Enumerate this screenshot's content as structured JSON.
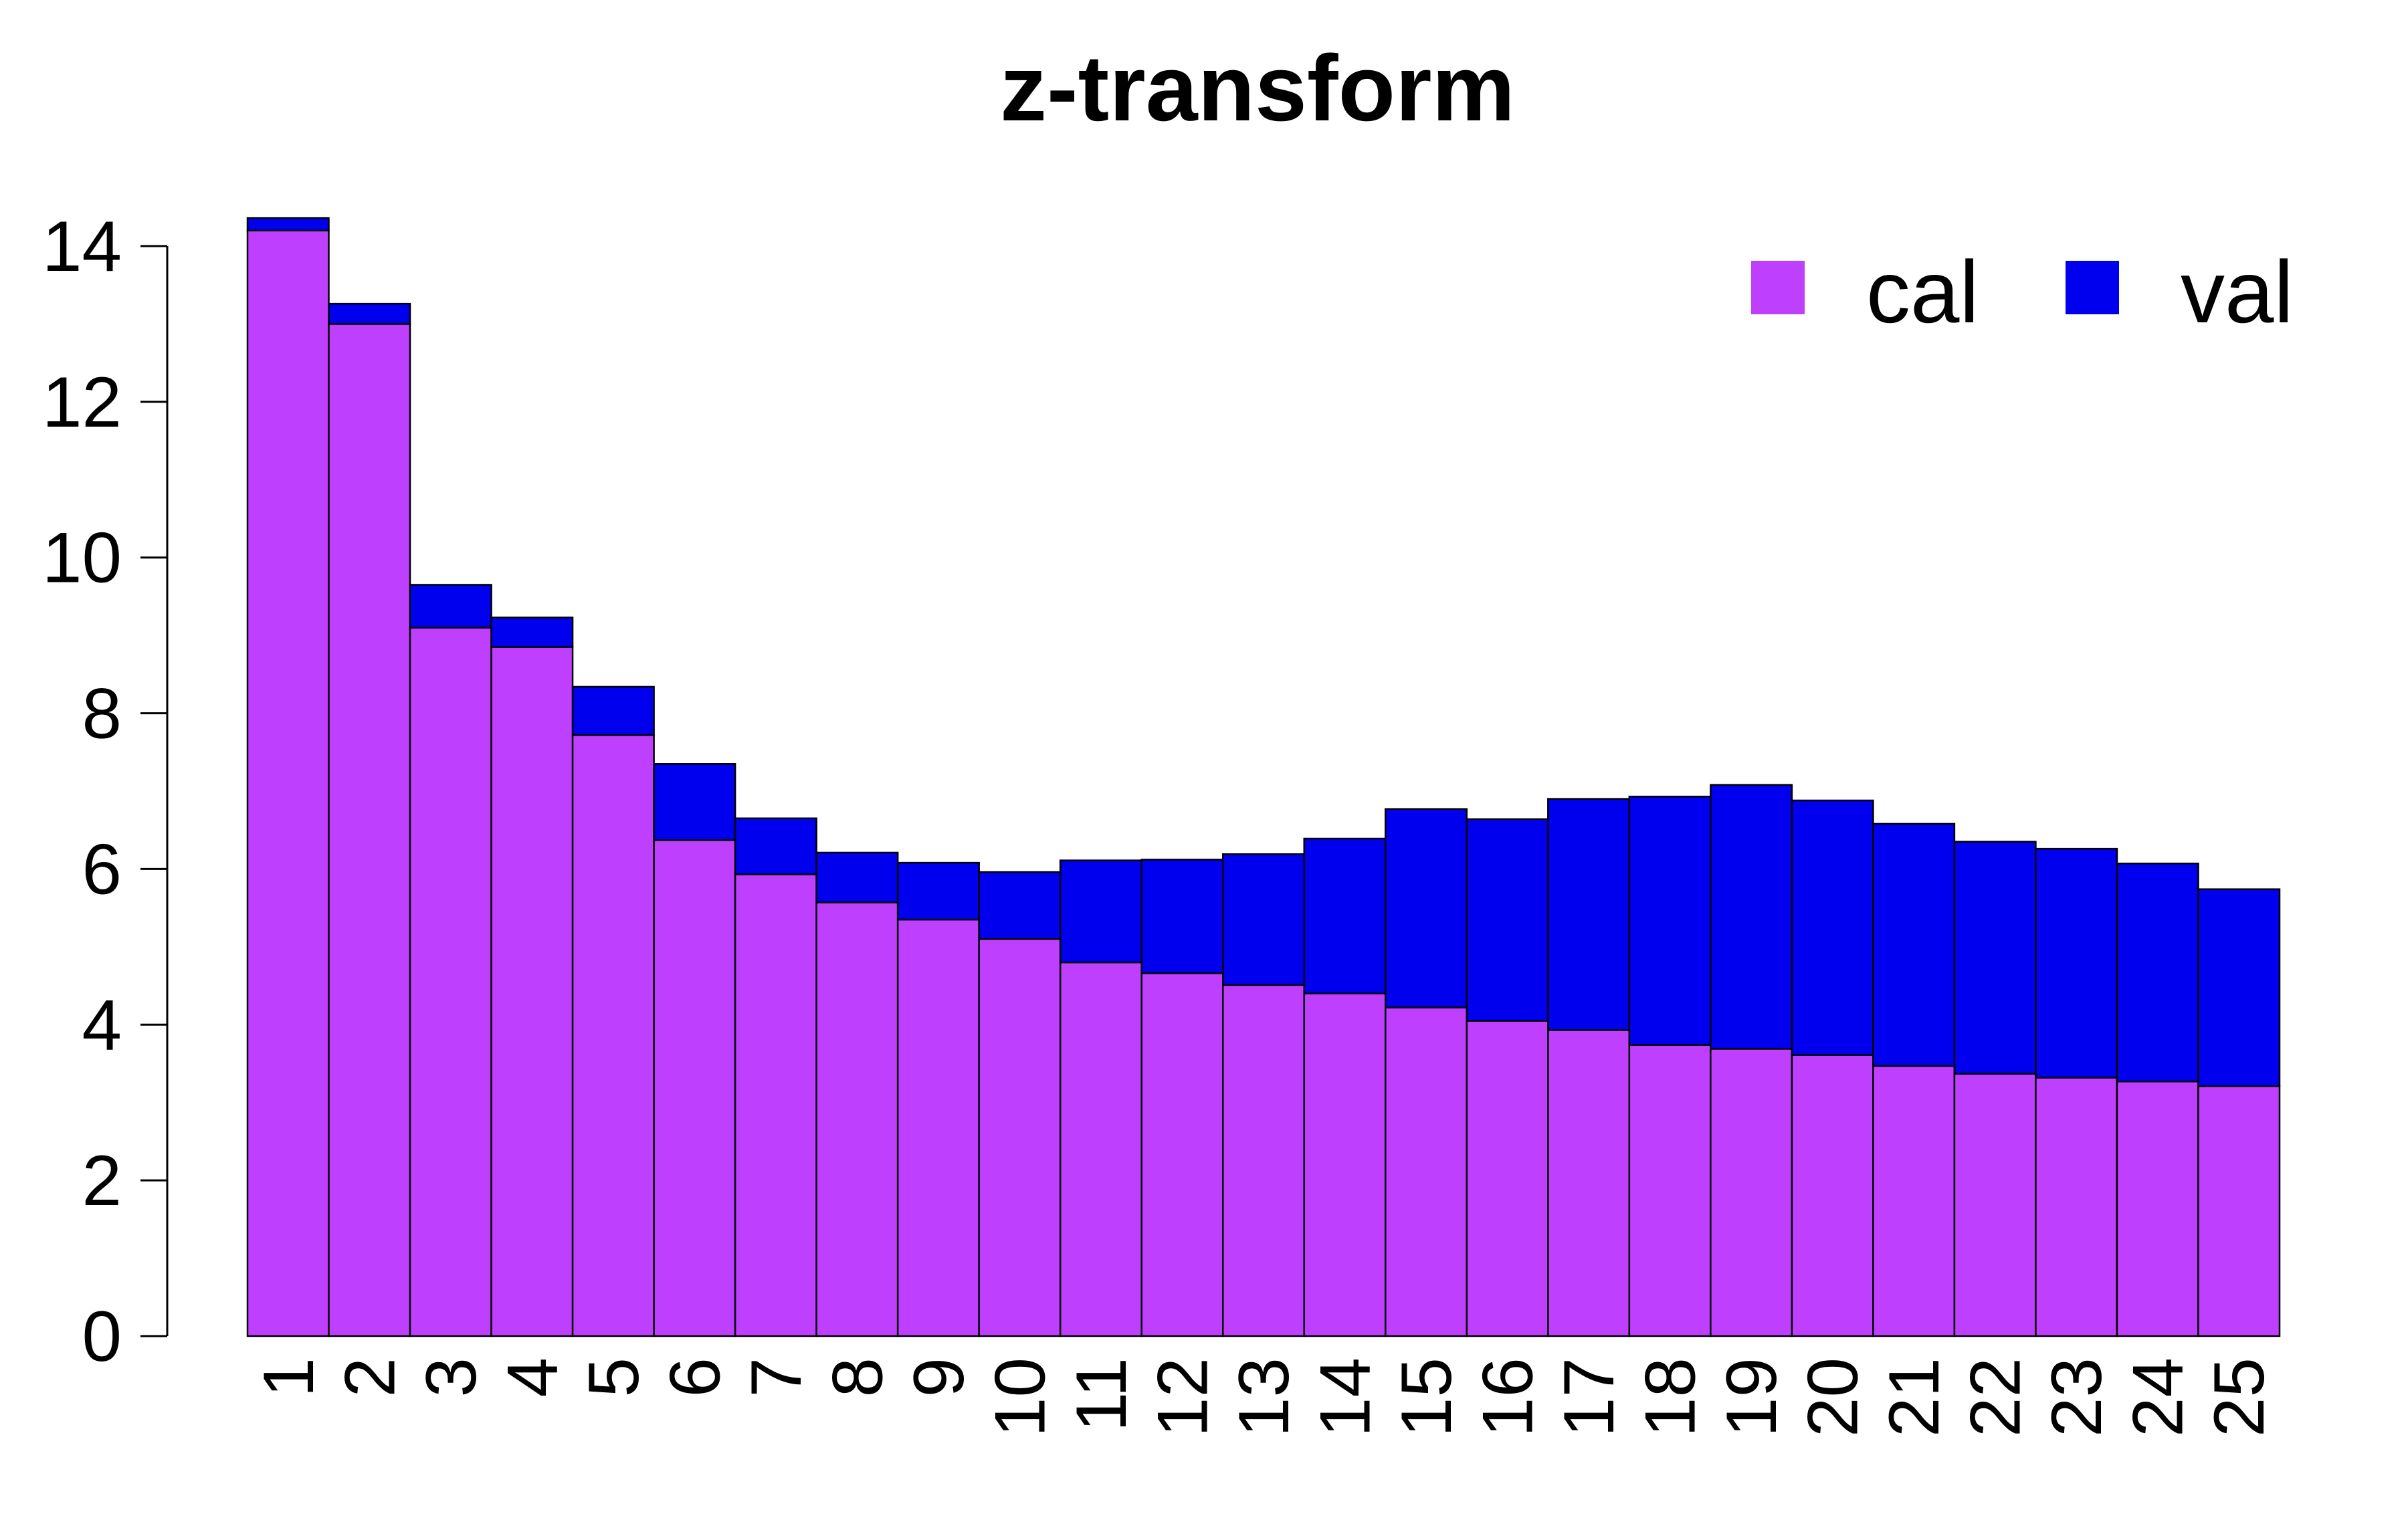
{
  "chart_data": {
    "type": "bar",
    "stacked": true,
    "title": "z-transform",
    "xlabel": "",
    "ylabel": "",
    "ylim": [
      0,
      14
    ],
    "yticks": [
      "0",
      "2",
      "4",
      "6",
      "8",
      "10",
      "12",
      "14"
    ],
    "categories": [
      "1",
      "2",
      "3",
      "4",
      "5",
      "6",
      "7",
      "8",
      "9",
      "10",
      "11",
      "12",
      "13",
      "14",
      "15",
      "16",
      "17",
      "18",
      "19",
      "20",
      "21",
      "22",
      "23",
      "24",
      "25"
    ],
    "series": [
      {
        "name": "cal",
        "color": "#bf3fff",
        "values": [
          14.2,
          13.0,
          9.1,
          8.85,
          7.72,
          6.37,
          5.93,
          5.57,
          5.35,
          5.1,
          4.8,
          4.66,
          4.51,
          4.4,
          4.22,
          4.05,
          3.93,
          3.74,
          3.69,
          3.61,
          3.47,
          3.37,
          3.32,
          3.27,
          3.21
        ]
      },
      {
        "name": "val",
        "color": "#0000ee",
        "values": [
          0.16,
          0.26,
          0.55,
          0.38,
          0.62,
          0.98,
          0.72,
          0.64,
          0.73,
          0.86,
          1.31,
          1.46,
          1.68,
          1.99,
          2.55,
          2.59,
          2.97,
          3.19,
          3.39,
          3.27,
          3.11,
          2.98,
          2.94,
          2.8,
          2.53
        ]
      }
    ],
    "legend": "top-right",
    "grid": false
  }
}
